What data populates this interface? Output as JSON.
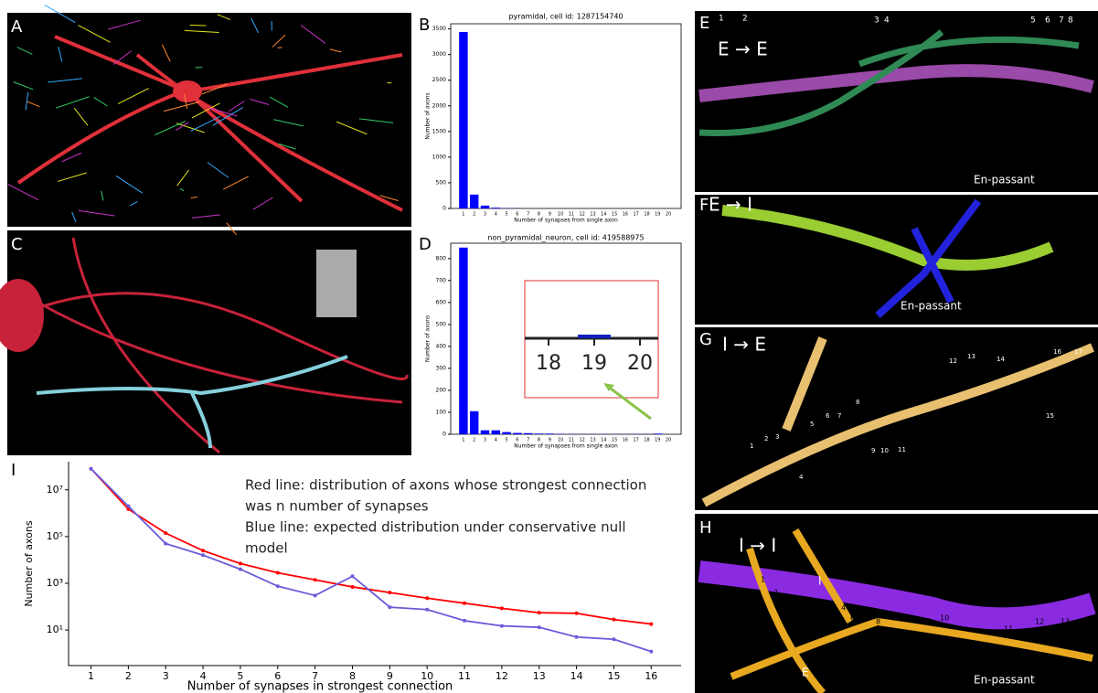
{
  "panel_labels": [
    "A",
    "B",
    "C",
    "D",
    "E",
    "F",
    "G",
    "H",
    "I"
  ],
  "panels": {
    "E": {
      "title": "E → E",
      "numbers": [
        "1",
        "2",
        "3",
        "4",
        "5",
        "6",
        "7",
        "8"
      ],
      "note": "En-passant"
    },
    "F": {
      "title": "E → I",
      "note": "En-passant"
    },
    "G": {
      "title": "I → E",
      "numbers": [
        "1",
        "2",
        "3",
        "4",
        "5",
        "6",
        "7",
        "8",
        "9",
        "10",
        "11",
        "12",
        "13",
        "14",
        "15",
        "16",
        "17"
      ]
    },
    "H": {
      "title": "I → I",
      "numbers": [
        "1",
        "2",
        "4",
        "5",
        "6",
        "8",
        "9",
        "10",
        "11",
        "12",
        "13"
      ],
      "labels": [
        "I",
        "E"
      ],
      "note": "En-passant"
    }
  },
  "chart_data": [
    {
      "type": "bar",
      "title": "pyramidal, cell id: 1287154740",
      "x_label": "Number of synapses from single axon",
      "y_label": "Number of axons",
      "categories": [
        "1",
        "2",
        "3",
        "4",
        "5",
        "6",
        "7",
        "8",
        "9",
        "10",
        "11",
        "12",
        "13",
        "14",
        "15",
        "16",
        "17",
        "18",
        "19",
        "20"
      ],
      "values": [
        3440,
        270,
        55,
        15,
        5,
        3,
        2,
        1,
        1,
        0,
        0,
        0,
        0,
        0,
        0,
        0,
        0,
        0,
        0,
        0
      ],
      "color": "#0000ff",
      "ylim": [
        0,
        3600
      ],
      "yticks": [
        0,
        500,
        1000,
        1500,
        2000,
        2500,
        3000,
        3500
      ]
    },
    {
      "type": "bar",
      "title": "non_pyramidal_neuron, cell id: 419588975",
      "x_label": "Number of synapses from single axon",
      "y_label": "Number of axons",
      "categories": [
        "1",
        "2",
        "3",
        "4",
        "5",
        "6",
        "7",
        "8",
        "9",
        "10",
        "11",
        "12",
        "13",
        "14",
        "15",
        "16",
        "17",
        "18",
        "19",
        "20"
      ],
      "values": [
        850,
        105,
        18,
        18,
        10,
        6,
        5,
        3,
        3,
        2,
        1,
        1,
        1,
        1,
        1,
        1,
        1,
        1,
        3,
        0
      ],
      "color": "#0000ff",
      "ylim": [
        0,
        870
      ],
      "yticks": [
        0,
        100,
        200,
        300,
        400,
        500,
        600,
        700,
        800
      ],
      "inset_labels": [
        "18",
        "19",
        "20"
      ]
    },
    {
      "type": "line",
      "x_label": "Number of synapses in strongest connection",
      "y_label": "Number of axons",
      "annotations": [
        "Red line: distribution of axons whose strongest connection",
        "was n number of synapses",
        "Blue line: expected distribution under conservative null",
        "model"
      ],
      "x": [
        1,
        2,
        3,
        4,
        5,
        6,
        7,
        8,
        9,
        10,
        11,
        12,
        13,
        14,
        15,
        16
      ],
      "xlim": [
        0.4,
        16.8
      ],
      "xticks": [
        1,
        2,
        3,
        4,
        5,
        6,
        7,
        8,
        9,
        10,
        11,
        12,
        13,
        14,
        15,
        16
      ],
      "log_y": true,
      "ylim": [
        0.3,
        160000000
      ],
      "yticks": [
        {
          "value": 10,
          "label": "10¹"
        },
        {
          "value": 1000,
          "label": "10³"
        },
        {
          "value": 100000,
          "label": "10⁵"
        },
        {
          "value": 10000000,
          "label": "10⁷"
        }
      ],
      "series": [
        {
          "color": "#ff0000",
          "values": [
            80000000,
            1500000,
            140000,
            25000,
            7000,
            2800,
            1400,
            700,
            400,
            230,
            140,
            85,
            55,
            52,
            28,
            18
          ]
        },
        {
          "color": "#6a5cd8",
          "values": [
            80000000,
            2000000,
            50000,
            16000,
            4000,
            750,
            300,
            2000,
            95,
            75,
            25,
            15,
            13,
            5,
            4,
            1.2
          ]
        }
      ]
    }
  ]
}
